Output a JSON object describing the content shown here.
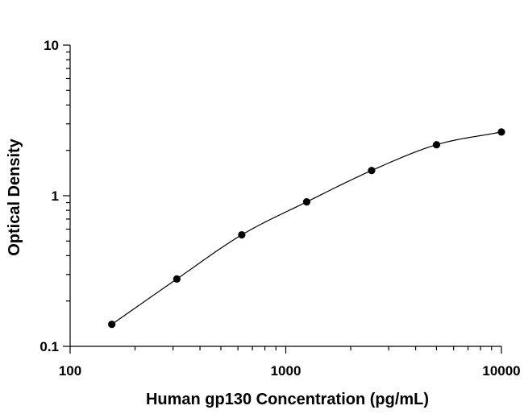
{
  "chart_data": {
    "type": "scatter",
    "title": "",
    "xlabel": "Human gp130 Concentration (pg/mL)",
    "ylabel": "Optical Density",
    "x_scale": "log",
    "y_scale": "log",
    "xlim": [
      100,
      10000
    ],
    "ylim": [
      0.1,
      10
    ],
    "x_ticks": [
      {
        "value": 100,
        "label": "100"
      },
      {
        "value": 1000,
        "label": "1000"
      },
      {
        "value": 10000,
        "label": "10000"
      }
    ],
    "y_ticks": [
      {
        "value": 0.1,
        "label": "0.1"
      },
      {
        "value": 1,
        "label": "1"
      },
      {
        "value": 10,
        "label": "10"
      }
    ],
    "grid": false,
    "legend": "none",
    "series": [
      {
        "points": [
          {
            "x": 156,
            "y": 0.14
          },
          {
            "x": 312.5,
            "y": 0.28
          },
          {
            "x": 625,
            "y": 0.55
          },
          {
            "x": 1250,
            "y": 0.91
          },
          {
            "x": 2500,
            "y": 1.47
          },
          {
            "x": 5000,
            "y": 2.18
          },
          {
            "x": 10000,
            "y": 2.65
          }
        ],
        "fit_curve": true
      }
    ],
    "colors": {
      "marker": "#000000",
      "line": "#000000",
      "axis": "#000000"
    }
  }
}
